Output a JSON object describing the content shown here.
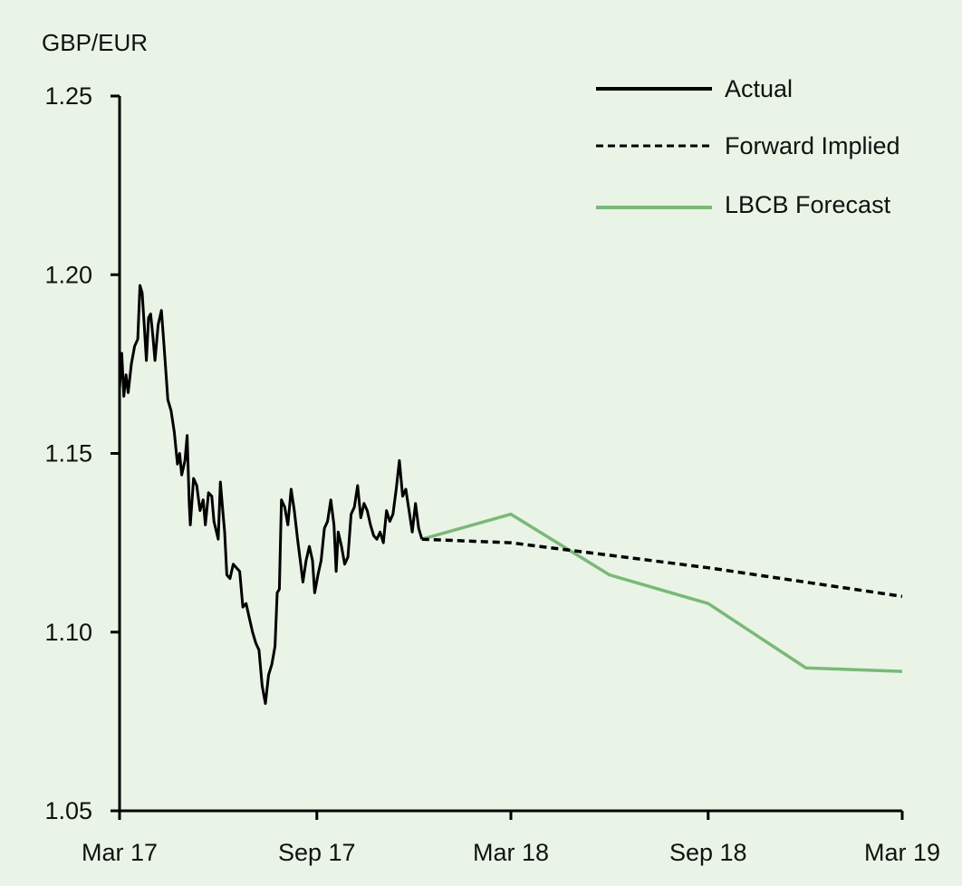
{
  "chart_data": {
    "type": "line",
    "ylabel": "GBP/EUR",
    "ylim": [
      1.05,
      1.25
    ],
    "yticks": [
      "1.05",
      "1.10",
      "1.15",
      "1.20",
      "1.25"
    ],
    "yticks_values": [
      1.05,
      1.1,
      1.15,
      1.2,
      1.25
    ],
    "xlim": [
      "2017-03-01",
      "2019-03-01"
    ],
    "xticks": [
      {
        "label": "Mar 17",
        "date": "2017-03-01"
      },
      {
        "label": "Sep 17",
        "date": "2017-09-01"
      },
      {
        "label": "Mar 18",
        "date": "2018-03-01"
      },
      {
        "label": "Sep 18",
        "date": "2018-09-01"
      },
      {
        "label": "Mar 19",
        "date": "2019-03-01"
      }
    ],
    "legend_position": "top-right",
    "series": [
      {
        "name": "Actual",
        "color": "#000000",
        "dash": "solid",
        "points": [
          [
            "2017-03-01",
            1.168
          ],
          [
            "2017-03-03",
            1.178
          ],
          [
            "2017-03-05",
            1.166
          ],
          [
            "2017-03-07",
            1.172
          ],
          [
            "2017-03-09",
            1.167
          ],
          [
            "2017-03-12",
            1.175
          ],
          [
            "2017-03-15",
            1.18
          ],
          [
            "2017-03-18",
            1.182
          ],
          [
            "2017-03-20",
            1.197
          ],
          [
            "2017-03-22",
            1.195
          ],
          [
            "2017-03-24",
            1.186
          ],
          [
            "2017-03-26",
            1.176
          ],
          [
            "2017-03-28",
            1.188
          ],
          [
            "2017-03-30",
            1.189
          ],
          [
            "2017-04-01",
            1.183
          ],
          [
            "2017-04-03",
            1.176
          ],
          [
            "2017-04-06",
            1.186
          ],
          [
            "2017-04-09",
            1.19
          ],
          [
            "2017-04-12",
            1.178
          ],
          [
            "2017-04-15",
            1.165
          ],
          [
            "2017-04-18",
            1.162
          ],
          [
            "2017-04-21",
            1.156
          ],
          [
            "2017-04-24",
            1.147
          ],
          [
            "2017-04-26",
            1.15
          ],
          [
            "2017-04-28",
            1.144
          ],
          [
            "2017-05-01",
            1.148
          ],
          [
            "2017-05-03",
            1.155
          ],
          [
            "2017-05-05",
            1.136
          ],
          [
            "2017-05-06",
            1.13
          ],
          [
            "2017-05-09",
            1.143
          ],
          [
            "2017-05-12",
            1.141
          ],
          [
            "2017-05-15",
            1.134
          ],
          [
            "2017-05-18",
            1.137
          ],
          [
            "2017-05-20",
            1.13
          ],
          [
            "2017-05-23",
            1.139
          ],
          [
            "2017-05-26",
            1.138
          ],
          [
            "2017-05-28",
            1.131
          ],
          [
            "2017-06-01",
            1.126
          ],
          [
            "2017-06-03",
            1.142
          ],
          [
            "2017-06-05",
            1.135
          ],
          [
            "2017-06-07",
            1.128
          ],
          [
            "2017-06-09",
            1.116
          ],
          [
            "2017-06-12",
            1.115
          ],
          [
            "2017-06-15",
            1.119
          ],
          [
            "2017-06-18",
            1.118
          ],
          [
            "2017-06-21",
            1.117
          ],
          [
            "2017-06-24",
            1.107
          ],
          [
            "2017-06-27",
            1.108
          ],
          [
            "2017-06-30",
            1.104
          ],
          [
            "2017-07-03",
            1.1
          ],
          [
            "2017-07-06",
            1.097
          ],
          [
            "2017-07-09",
            1.095
          ],
          [
            "2017-07-12",
            1.085
          ],
          [
            "2017-07-15",
            1.08
          ],
          [
            "2017-07-18",
            1.088
          ],
          [
            "2017-07-21",
            1.091
          ],
          [
            "2017-07-24",
            1.096
          ],
          [
            "2017-07-26",
            1.111
          ],
          [
            "2017-07-28",
            1.112
          ],
          [
            "2017-07-30",
            1.137
          ],
          [
            "2017-08-02",
            1.135
          ],
          [
            "2017-08-05",
            1.13
          ],
          [
            "2017-08-08",
            1.14
          ],
          [
            "2017-08-11",
            1.134
          ],
          [
            "2017-08-14",
            1.126
          ],
          [
            "2017-08-17",
            1.119
          ],
          [
            "2017-08-19",
            1.114
          ],
          [
            "2017-08-22",
            1.12
          ],
          [
            "2017-08-25",
            1.124
          ],
          [
            "2017-08-28",
            1.12
          ],
          [
            "2017-08-30",
            1.111
          ],
          [
            "2017-09-02",
            1.116
          ],
          [
            "2017-09-05",
            1.12
          ],
          [
            "2017-09-08",
            1.129
          ],
          [
            "2017-09-11",
            1.131
          ],
          [
            "2017-09-14",
            1.137
          ],
          [
            "2017-09-17",
            1.13
          ],
          [
            "2017-09-19",
            1.117
          ],
          [
            "2017-09-21",
            1.128
          ],
          [
            "2017-09-24",
            1.124
          ],
          [
            "2017-09-27",
            1.119
          ],
          [
            "2017-09-30",
            1.121
          ],
          [
            "2017-10-03",
            1.133
          ],
          [
            "2017-10-06",
            1.135
          ],
          [
            "2017-10-09",
            1.141
          ],
          [
            "2017-10-12",
            1.132
          ],
          [
            "2017-10-15",
            1.136
          ],
          [
            "2017-10-18",
            1.134
          ],
          [
            "2017-10-21",
            1.13
          ],
          [
            "2017-10-24",
            1.127
          ],
          [
            "2017-10-27",
            1.126
          ],
          [
            "2017-10-30",
            1.128
          ],
          [
            "2017-11-02",
            1.125
          ],
          [
            "2017-11-05",
            1.134
          ],
          [
            "2017-11-08",
            1.131
          ],
          [
            "2017-11-11",
            1.133
          ],
          [
            "2017-11-14",
            1.14
          ],
          [
            "2017-11-17",
            1.148
          ],
          [
            "2017-11-20",
            1.138
          ],
          [
            "2017-11-23",
            1.14
          ],
          [
            "2017-11-26",
            1.134
          ],
          [
            "2017-11-29",
            1.128
          ],
          [
            "2017-12-02",
            1.136
          ],
          [
            "2017-12-05",
            1.129
          ],
          [
            "2017-12-08",
            1.126
          ]
        ]
      },
      {
        "name": "Forward Implied",
        "color": "#000000",
        "dash": "dashed",
        "points": [
          [
            "2017-12-08",
            1.126
          ],
          [
            "2018-03-01",
            1.125
          ],
          [
            "2018-09-01",
            1.118
          ],
          [
            "2019-03-01",
            1.11
          ]
        ]
      },
      {
        "name": "LBCB Forecast",
        "color": "#7ab87a",
        "dash": "solid",
        "points": [
          [
            "2017-12-08",
            1.126
          ],
          [
            "2018-03-01",
            1.133
          ],
          [
            "2018-06-01",
            1.116
          ],
          [
            "2018-09-01",
            1.108
          ],
          [
            "2018-12-01",
            1.09
          ],
          [
            "2019-03-01",
            1.089
          ]
        ]
      }
    ]
  }
}
